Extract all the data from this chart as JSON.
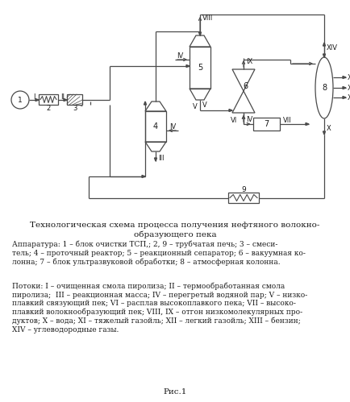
{
  "title_line1": "Технологическая схема процесса получения нефтяного волокно-",
  "title_line2": "образующего пека",
  "caption_line": "Рис.1",
  "apparatus_text": "Аппаратура: 1 – блок очистки ТСП,; 2, 9 – трубчатая печь; 3 – смеси-\nтель; 4 – проточный реактор; 5 – реакционный сепаратор; 6 – вакуумная ко-\nлонна; 7 – блок ультразвуковой обработки; 8 – атмосферная колонна.",
  "flows_text": "Потоки: I – очищенная смола пиролиза; II – термообработанная смола\nпиролиза;  III – реакционная масса; IV – перегретый водяной пар; V – низко-\nплавкий связующий пек; VI – расплав высокоплавкого пека; VII – высоко-\nплавкий волокнообразующий пек; VIII, IX – отгон низкомолекулярных про-\nдуктов; X – вода; XI – тяжелый газойль; XII – легкий газойль; XIII – бензин;\nXIV – углеводородные газы.",
  "bg_color": "#ffffff",
  "line_color": "#4a4a4a",
  "text_color": "#1a1a1a"
}
